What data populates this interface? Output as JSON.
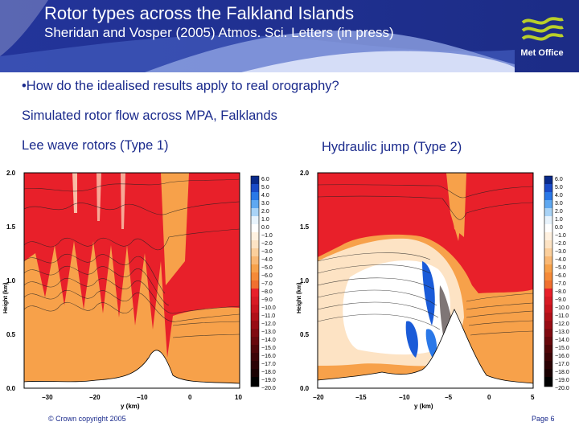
{
  "header": {
    "title": "Rotor types across the Falkland Islands",
    "subtitle": "Sheridan and Vosper (2005) Atmos. Sci. Letters (in press)",
    "logo_label": "Met Office",
    "colors": {
      "banner": "#1f2f8f",
      "banner_light": "#7f92d6",
      "logo_green": "#b9cf2a"
    }
  },
  "body": {
    "bullet": "•How do the idealised results apply to real orography?",
    "line2": "Simulated rotor flow across MPA, Falklands",
    "left_caption": "Lee wave rotors (Type 1)",
    "right_caption": "Hydraulic jump (Type 2)"
  },
  "plots": {
    "y_axis_label": "Height (km)",
    "x_axis_label": "y (km)",
    "y_ticks": [
      "0.0",
      "0.5",
      "1.0",
      "1.5",
      "2.0"
    ],
    "left_x_ticks": [
      "−30",
      "−20",
      "−10",
      "0",
      "10"
    ],
    "right_x_ticks": [
      "−20",
      "−15",
      "−10",
      "−5",
      "0",
      "5"
    ],
    "colorbar_ticks": [
      "6.0",
      "5.0",
      "4.0",
      "3.0",
      "2.0",
      "1.0",
      "0.0",
      "−1.0",
      "−2.0",
      "−3.0",
      "−4.0",
      "−5.0",
      "−6.0",
      "−7.0",
      "−8.0",
      "−9.0",
      "−10.0",
      "−11.0",
      "−12.0",
      "−13.0",
      "−14.0",
      "−15.0",
      "−16.0",
      "−17.0",
      "−18.0",
      "−19.0",
      "−20.0"
    ],
    "colors": {
      "red": "#e8202a",
      "orange": "#f7a14a",
      "light": "#fde3c4",
      "blue": "#1a5bd8"
    }
  },
  "footer": {
    "copyright": "© Crown copyright 2005",
    "page": "Page 6"
  }
}
